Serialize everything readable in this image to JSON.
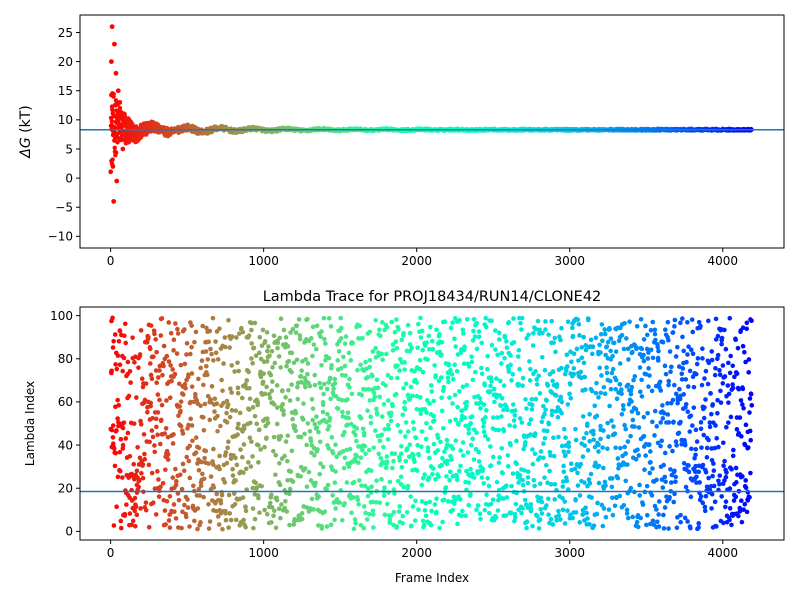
{
  "chart_data": [
    {
      "type": "scatter",
      "title": "",
      "xlabel": "",
      "ylabel": "ΔG (kT)",
      "ylabel_symbol": "ΔG",
      "ylabel_unit": "(kT)",
      "xlim": [
        -200,
        4400
      ],
      "ylim": [
        -12,
        28
      ],
      "xticks": [
        0,
        1000,
        2000,
        3000,
        4000
      ],
      "yticks": [
        -10,
        -5,
        0,
        5,
        10,
        15,
        20,
        25
      ],
      "hline": 8.3,
      "colormap": "rainbow",
      "x_range": [
        0,
        4190
      ],
      "converged_value": 8.3,
      "sample_points": [
        {
          "x": 5,
          "y": 20
        },
        {
          "x": 10,
          "y": 26
        },
        {
          "x": 15,
          "y": 2
        },
        {
          "x": 20,
          "y": -4
        },
        {
          "x": 25,
          "y": 23
        },
        {
          "x": 30,
          "y": 12.5
        },
        {
          "x": 35,
          "y": 18
        },
        {
          "x": 40,
          "y": -0.5
        },
        {
          "x": 50,
          "y": 15
        },
        {
          "x": 60,
          "y": 13
        },
        {
          "x": 70,
          "y": 9
        },
        {
          "x": 80,
          "y": 5
        },
        {
          "x": 90,
          "y": 11
        },
        {
          "x": 100,
          "y": 6
        },
        {
          "x": 120,
          "y": 10
        },
        {
          "x": 150,
          "y": 8
        },
        {
          "x": 200,
          "y": 9
        },
        {
          "x": 300,
          "y": 8.5
        },
        {
          "x": 500,
          "y": 9
        },
        {
          "x": 1000,
          "y": 8
        },
        {
          "x": 2000,
          "y": 8.4
        },
        {
          "x": 3000,
          "y": 8.3
        },
        {
          "x": 4190,
          "y": 8.3
        }
      ]
    },
    {
      "type": "scatter",
      "title": "Lambda Trace for PROJ18434/RUN14/CLONE42",
      "xlabel": "Frame Index",
      "ylabel": "Lambda Index",
      "xlim": [
        -200,
        4400
      ],
      "ylim": [
        -4,
        104
      ],
      "xticks": [
        0,
        1000,
        2000,
        3000,
        4000
      ],
      "yticks": [
        0,
        20,
        40,
        60,
        80,
        100
      ],
      "hline": 18.5,
      "colormap": "rainbow",
      "x_range": [
        0,
        4190
      ],
      "lambda_range": [
        1,
        99
      ],
      "point_count": 2600
    }
  ]
}
